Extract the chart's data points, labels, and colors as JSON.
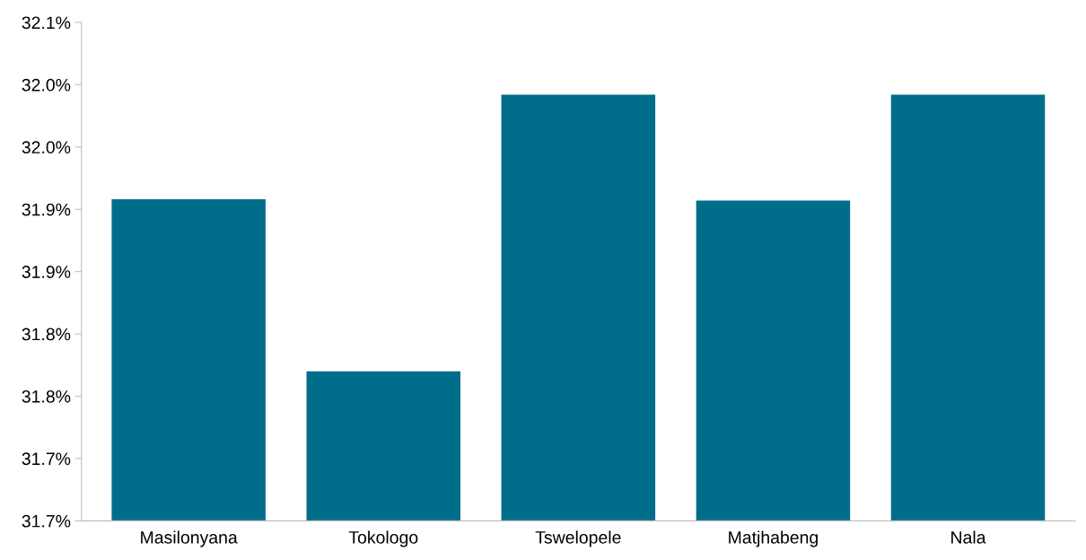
{
  "chart_data": {
    "type": "bar",
    "categories": [
      "Masilonyana",
      "Tokologo",
      "Tswelopele",
      "Matjhabeng",
      "Nala"
    ],
    "values": [
      31.958,
      31.82,
      32.042,
      31.957,
      32.042
    ],
    "color": "#006e8a",
    "ylim": [
      31.7,
      32.1
    ],
    "yticks": [
      {
        "value": 31.7,
        "label": "31.7%"
      },
      {
        "value": 31.75,
        "label": "31.7%"
      },
      {
        "value": 31.8,
        "label": "31.8%"
      },
      {
        "value": 31.85,
        "label": "31.8%"
      },
      {
        "value": 31.9,
        "label": "31.9%"
      },
      {
        "value": 31.95,
        "label": "31.9%"
      },
      {
        "value": 32.0,
        "label": "32.0%"
      },
      {
        "value": 32.05,
        "label": "32.0%"
      },
      {
        "value": 32.1,
        "label": "32.1%"
      }
    ],
    "grid": false,
    "legend": false
  }
}
